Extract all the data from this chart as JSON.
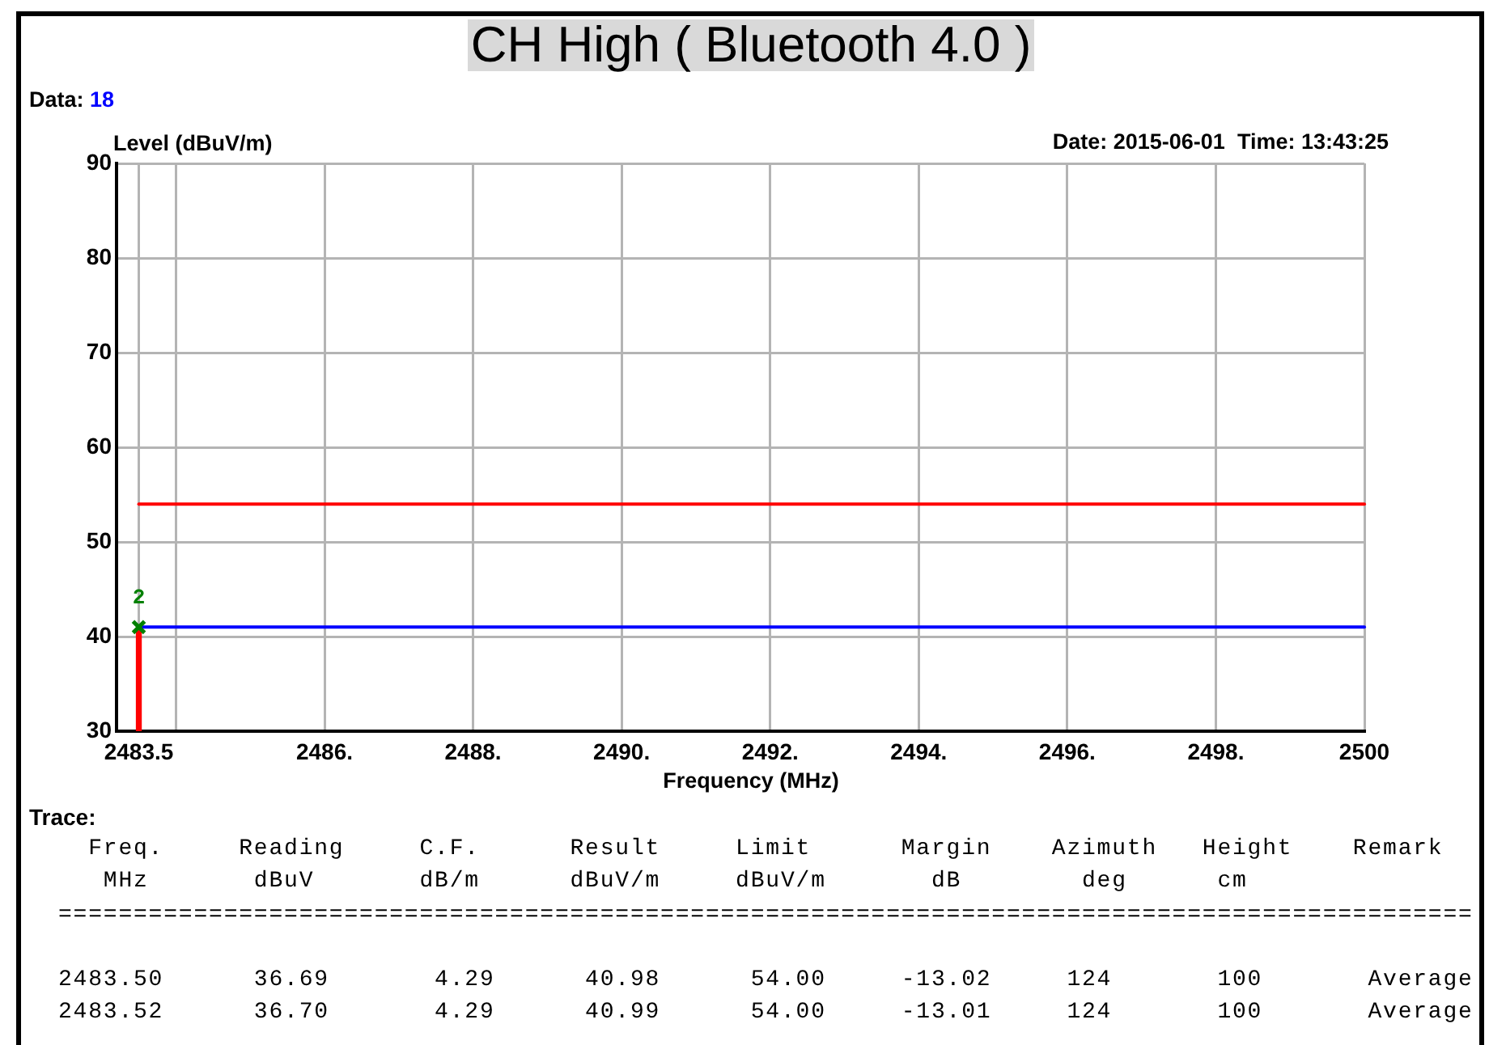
{
  "chart_data": {
    "type": "line",
    "title": "CH High ( Bluetooth 4.0 )",
    "xlabel": "Frequency (MHz)",
    "ylabel": "Level (dBuV/m)",
    "xlim": [
      2483.2,
      2500
    ],
    "xticks": [
      2483.5,
      {
        "value": 2484,
        "label": null
      },
      {
        "value": 2486,
        "label": "2486."
      },
      {
        "value": 2488,
        "label": "2488."
      },
      {
        "value": 2490,
        "label": "2490."
      },
      {
        "value": 2492,
        "label": "2492."
      },
      {
        "value": 2494,
        "label": "2494."
      },
      {
        "value": 2496,
        "label": "2496."
      },
      {
        "value": 2498,
        "label": "2498."
      },
      2500
    ],
    "ylim": [
      30,
      90
    ],
    "yticks": [
      30,
      40,
      50,
      60,
      70,
      80,
      90
    ],
    "grid": true,
    "x": [
      2483.5,
      2500
    ],
    "series": [
      {
        "color": "#ff0000",
        "values": [
          54,
          54
        ]
      },
      {
        "color": "#0000ff",
        "values": [
          41,
          41
        ]
      },
      {
        "type": "bar",
        "color": "#ff0000",
        "values": [
          41,
          null
        ]
      },
      {
        "type": "scatter",
        "color": "#008000",
        "marker": "cross",
        "values": [
          41,
          null
        ]
      }
    ],
    "annotations": [
      "Data: 18",
      "Date: 2015-06-01  Time: 13:43:25",
      {
        "text": "2",
        "x": 2483.5,
        "y": 41
      },
      "Trace:",
      "  Freq.     Reading     C.F.      Result     Limit      Margin    Azimuth   Height    Remark",
      "   MHz       dBuV       dB/m      dBuV/m     dBuV/m       dB        deg      cm",
      "==============================================================================================",
      "2483.50      36.69       4.29      40.98      54.00     -13.02     124       100       Average",
      "2483.52      36.70       4.29      40.99      54.00     -13.01     124       100       Average"
    ]
  }
}
